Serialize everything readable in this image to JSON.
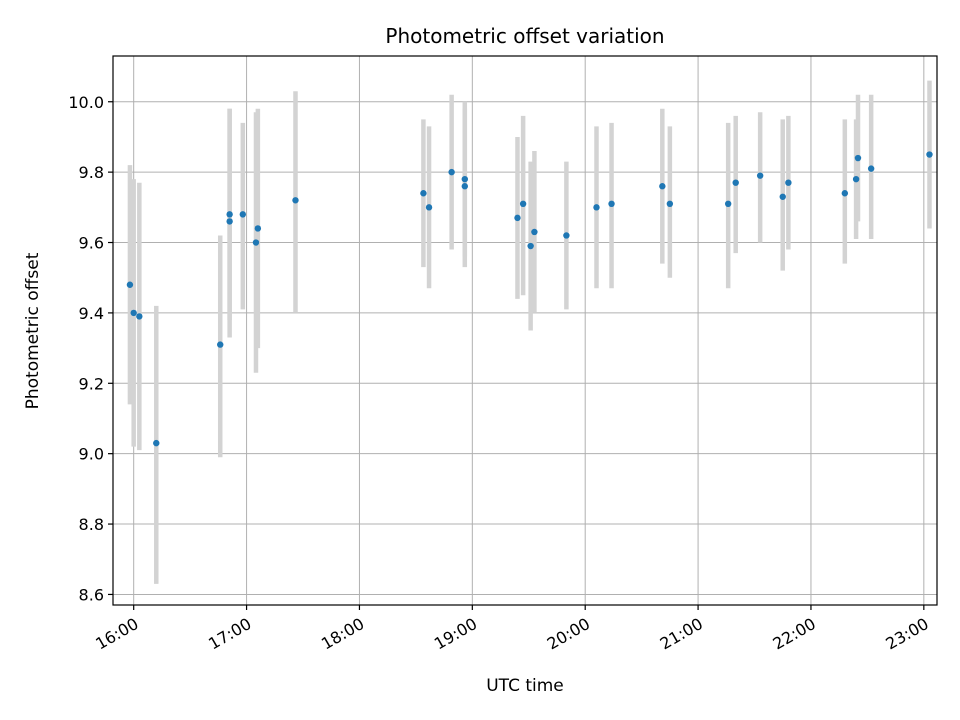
{
  "chart_data": {
    "type": "scatter",
    "title": "Photometric offset variation",
    "xlabel": "UTC time",
    "ylabel": "Photometric offset",
    "x_ticks": [
      "16:00",
      "17:00",
      "18:00",
      "19:00",
      "20:00",
      "21:00",
      "22:00",
      "23:00"
    ],
    "y_ticks": [
      "8.6",
      "8.8",
      "9.0",
      "9.2",
      "9.4",
      "9.6",
      "9.8",
      "10.0"
    ],
    "ylim": [
      8.57,
      10.13
    ],
    "xlim": [
      "15:49",
      "23:07"
    ],
    "grid": true,
    "colors": {
      "point": "#1f77b4",
      "errorbar": "#d3d3d3",
      "grid": "#b0b0b0"
    },
    "points": [
      {
        "x": "15:58",
        "y": 9.48,
        "lo": 9.14,
        "hi": 9.82
      },
      {
        "x": "16:00",
        "y": 9.4,
        "lo": 9.02,
        "hi": 9.78
      },
      {
        "x": "16:03",
        "y": 9.39,
        "lo": 9.01,
        "hi": 9.77
      },
      {
        "x": "16:12",
        "y": 9.03,
        "lo": 8.63,
        "hi": 9.42
      },
      {
        "x": "16:46",
        "y": 9.31,
        "lo": 8.99,
        "hi": 9.62
      },
      {
        "x": "16:51",
        "y": 9.68,
        "lo": 9.38,
        "hi": 9.98
      },
      {
        "x": "16:51",
        "y": 9.66,
        "lo": 9.33,
        "hi": 9.98
      },
      {
        "x": "16:58",
        "y": 9.68,
        "lo": 9.41,
        "hi": 9.94
      },
      {
        "x": "17:05",
        "y": 9.6,
        "lo": 9.23,
        "hi": 9.97
      },
      {
        "x": "17:06",
        "y": 9.64,
        "lo": 9.3,
        "hi": 9.98
      },
      {
        "x": "17:26",
        "y": 9.72,
        "lo": 9.4,
        "hi": 10.03
      },
      {
        "x": "18:34",
        "y": 9.74,
        "lo": 9.53,
        "hi": 9.95
      },
      {
        "x": "18:37",
        "y": 9.7,
        "lo": 9.47,
        "hi": 9.93
      },
      {
        "x": "18:49",
        "y": 9.8,
        "lo": 9.58,
        "hi": 10.02
      },
      {
        "x": "18:56",
        "y": 9.78,
        "lo": 9.56,
        "hi": 10.0
      },
      {
        "x": "18:56",
        "y": 9.76,
        "lo": 9.53,
        "hi": 9.98
      },
      {
        "x": "19:24",
        "y": 9.67,
        "lo": 9.44,
        "hi": 9.9
      },
      {
        "x": "19:27",
        "y": 9.71,
        "lo": 9.45,
        "hi": 9.96
      },
      {
        "x": "19:31",
        "y": 9.59,
        "lo": 9.35,
        "hi": 9.83
      },
      {
        "x": "19:33",
        "y": 9.63,
        "lo": 9.4,
        "hi": 9.86
      },
      {
        "x": "19:50",
        "y": 9.62,
        "lo": 9.41,
        "hi": 9.83
      },
      {
        "x": "20:06",
        "y": 9.7,
        "lo": 9.47,
        "hi": 9.93
      },
      {
        "x": "20:14",
        "y": 9.71,
        "lo": 9.47,
        "hi": 9.94
      },
      {
        "x": "20:41",
        "y": 9.76,
        "lo": 9.54,
        "hi": 9.98
      },
      {
        "x": "20:45",
        "y": 9.71,
        "lo": 9.5,
        "hi": 9.93
      },
      {
        "x": "21:16",
        "y": 9.71,
        "lo": 9.47,
        "hi": 9.94
      },
      {
        "x": "21:20",
        "y": 9.77,
        "lo": 9.57,
        "hi": 9.96
      },
      {
        "x": "21:33",
        "y": 9.79,
        "lo": 9.6,
        "hi": 9.97
      },
      {
        "x": "21:45",
        "y": 9.73,
        "lo": 9.52,
        "hi": 9.95
      },
      {
        "x": "21:48",
        "y": 9.77,
        "lo": 9.58,
        "hi": 9.96
      },
      {
        "x": "22:18",
        "y": 9.74,
        "lo": 9.54,
        "hi": 9.95
      },
      {
        "x": "22:24",
        "y": 9.78,
        "lo": 9.61,
        "hi": 9.95
      },
      {
        "x": "22:25",
        "y": 9.84,
        "lo": 9.66,
        "hi": 10.02
      },
      {
        "x": "22:32",
        "y": 9.81,
        "lo": 9.61,
        "hi": 10.02
      },
      {
        "x": "23:03",
        "y": 9.85,
        "lo": 9.64,
        "hi": 10.06
      }
    ]
  }
}
